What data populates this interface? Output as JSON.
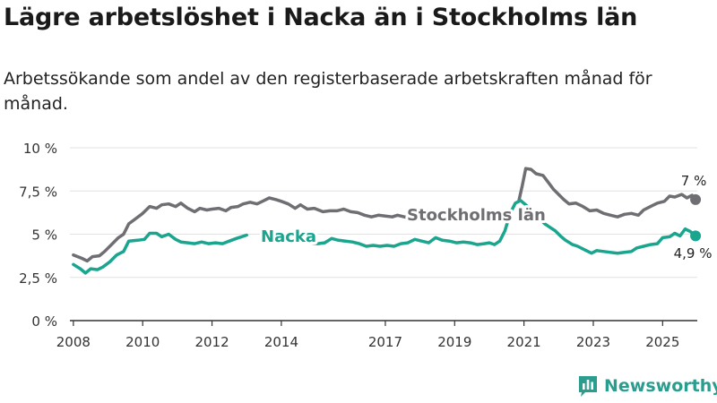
{
  "header": {
    "title": "Lägre arbetslöshet i Nacka än i Stockholms län",
    "subtitle": "Arbetssökande som andel av den registerbaserade arbetskraften månad för månad."
  },
  "brand": {
    "name": "Newsworthy"
  },
  "colors": {
    "stockholm": "#6f6e72",
    "nacka": "#1aa58f",
    "axis": "#333333",
    "grid": "#e2e2e2"
  },
  "chart_data": {
    "type": "line",
    "title": "Lägre arbetslöshet i Nacka än i Stockholms län",
    "ylim": [
      0,
      10
    ],
    "xlim": [
      2007.9,
      2026.0
    ],
    "y_ticks": [
      {
        "value": 0,
        "label": "0 %"
      },
      {
        "value": 2.5,
        "label": "2,5 %"
      },
      {
        "value": 5,
        "label": "5 %"
      },
      {
        "value": 7.5,
        "label": "7,5 %"
      },
      {
        "value": 10,
        "label": "10 %"
      }
    ],
    "x_ticks": [
      {
        "value": 2008,
        "label": "2008"
      },
      {
        "value": 2010,
        "label": "2010"
      },
      {
        "value": 2012,
        "label": "2012"
      },
      {
        "value": 2014,
        "label": "2014"
      },
      {
        "value": 2017,
        "label": "2017"
      },
      {
        "value": 2019,
        "label": "2019"
      },
      {
        "value": 2021,
        "label": "2021"
      },
      {
        "value": 2023,
        "label": "2023"
      },
      {
        "value": 2025,
        "label": "2025"
      }
    ],
    "series": [
      {
        "name": "Stockholms län",
        "label": "Stockholms län",
        "end_label": "7 %",
        "points": [
          [
            2008.0,
            3.8
          ],
          [
            2008.25,
            3.6
          ],
          [
            2008.4,
            3.45
          ],
          [
            2008.55,
            3.7
          ],
          [
            2008.75,
            3.75
          ],
          [
            2008.9,
            4.0
          ],
          [
            2009.1,
            4.4
          ],
          [
            2009.3,
            4.8
          ],
          [
            2009.45,
            5.0
          ],
          [
            2009.6,
            5.6
          ],
          [
            2009.8,
            5.9
          ],
          [
            2010.0,
            6.2
          ],
          [
            2010.2,
            6.6
          ],
          [
            2010.4,
            6.5
          ],
          [
            2010.55,
            6.7
          ],
          [
            2010.75,
            6.75
          ],
          [
            2010.95,
            6.6
          ],
          [
            2011.1,
            6.8
          ],
          [
            2011.3,
            6.5
          ],
          [
            2011.5,
            6.3
          ],
          [
            2011.65,
            6.5
          ],
          [
            2011.85,
            6.4
          ],
          [
            2012.0,
            6.45
          ],
          [
            2012.2,
            6.5
          ],
          [
            2012.4,
            6.35
          ],
          [
            2012.55,
            6.55
          ],
          [
            2012.75,
            6.6
          ],
          [
            2012.9,
            6.75
          ],
          [
            2013.1,
            6.85
          ],
          [
            2013.3,
            6.75
          ],
          [
            2013.5,
            6.95
          ],
          [
            2013.65,
            7.1
          ],
          [
            2013.85,
            7.0
          ],
          [
            2014.0,
            6.9
          ],
          [
            2014.2,
            6.75
          ],
          [
            2014.4,
            6.5
          ],
          [
            2014.55,
            6.7
          ],
          [
            2014.75,
            6.45
          ],
          [
            2014.95,
            6.5
          ],
          [
            2015.2,
            6.3
          ],
          [
            2015.4,
            6.35
          ],
          [
            2015.6,
            6.35
          ],
          [
            2015.8,
            6.45
          ],
          [
            2016.0,
            6.3
          ],
          [
            2016.2,
            6.25
          ],
          [
            2016.4,
            6.1
          ],
          [
            2016.6,
            6.0
          ],
          [
            2016.8,
            6.1
          ],
          [
            2017.0,
            6.05
          ],
          [
            2017.2,
            6.0
          ],
          [
            2017.35,
            6.1
          ],
          [
            2017.55,
            6.0
          ],
          [
            2017.65,
            5.95
          ]
        ],
        "points_right": [
          [
            2020.85,
            6.9
          ],
          [
            2020.95,
            7.8
          ],
          [
            2021.05,
            8.8
          ],
          [
            2021.2,
            8.75
          ],
          [
            2021.35,
            8.5
          ],
          [
            2021.55,
            8.4
          ],
          [
            2021.7,
            8.0
          ],
          [
            2021.85,
            7.6
          ],
          [
            2022.0,
            7.3
          ],
          [
            2022.15,
            7.0
          ],
          [
            2022.3,
            6.75
          ],
          [
            2022.5,
            6.8
          ],
          [
            2022.7,
            6.6
          ],
          [
            2022.9,
            6.35
          ],
          [
            2023.1,
            6.4
          ],
          [
            2023.3,
            6.2
          ],
          [
            2023.5,
            6.1
          ],
          [
            2023.7,
            6.0
          ],
          [
            2023.9,
            6.15
          ],
          [
            2024.1,
            6.2
          ],
          [
            2024.3,
            6.1
          ],
          [
            2024.45,
            6.4
          ],
          [
            2024.65,
            6.6
          ],
          [
            2024.85,
            6.8
          ],
          [
            2025.05,
            6.9
          ],
          [
            2025.2,
            7.2
          ],
          [
            2025.35,
            7.15
          ],
          [
            2025.55,
            7.3
          ],
          [
            2025.7,
            7.1
          ],
          [
            2025.85,
            7.25
          ],
          [
            2025.95,
            7.0
          ]
        ]
      },
      {
        "name": "Nacka",
        "label": "Nacka",
        "end_label": "4,9 %",
        "points": [
          [
            2008.0,
            3.25
          ],
          [
            2008.2,
            3.0
          ],
          [
            2008.35,
            2.75
          ],
          [
            2008.5,
            3.0
          ],
          [
            2008.7,
            2.95
          ],
          [
            2008.85,
            3.1
          ],
          [
            2009.05,
            3.4
          ],
          [
            2009.25,
            3.8
          ],
          [
            2009.45,
            4.0
          ],
          [
            2009.6,
            4.6
          ],
          [
            2009.85,
            4.65
          ],
          [
            2010.05,
            4.7
          ],
          [
            2010.2,
            5.05
          ],
          [
            2010.4,
            5.05
          ],
          [
            2010.55,
            4.85
          ],
          [
            2010.75,
            5.0
          ],
          [
            2010.95,
            4.7
          ],
          [
            2011.1,
            4.55
          ],
          [
            2011.3,
            4.5
          ],
          [
            2011.5,
            4.45
          ],
          [
            2011.7,
            4.55
          ],
          [
            2011.9,
            4.45
          ],
          [
            2012.1,
            4.5
          ],
          [
            2012.3,
            4.45
          ],
          [
            2012.5,
            4.6
          ],
          [
            2012.7,
            4.75
          ],
          [
            2012.85,
            4.85
          ],
          [
            2013.0,
            4.95
          ]
        ],
        "points_mid": [
          [
            2014.85,
            4.5
          ],
          [
            2015.05,
            4.45
          ],
          [
            2015.25,
            4.5
          ],
          [
            2015.45,
            4.75
          ],
          [
            2015.65,
            4.65
          ],
          [
            2015.85,
            4.6
          ],
          [
            2016.05,
            4.55
          ],
          [
            2016.25,
            4.45
          ],
          [
            2016.45,
            4.3
          ],
          [
            2016.65,
            4.35
          ],
          [
            2016.85,
            4.3
          ],
          [
            2017.05,
            4.35
          ],
          [
            2017.25,
            4.3
          ],
          [
            2017.45,
            4.45
          ],
          [
            2017.65,
            4.5
          ],
          [
            2017.85,
            4.7
          ],
          [
            2018.05,
            4.6
          ],
          [
            2018.25,
            4.5
          ],
          [
            2018.45,
            4.8
          ],
          [
            2018.65,
            4.65
          ],
          [
            2018.85,
            4.6
          ],
          [
            2019.05,
            4.5
          ],
          [
            2019.25,
            4.55
          ],
          [
            2019.45,
            4.5
          ],
          [
            2019.65,
            4.4
          ],
          [
            2019.85,
            4.45
          ],
          [
            2020.0,
            4.5
          ],
          [
            2020.15,
            4.4
          ],
          [
            2020.3,
            4.6
          ],
          [
            2020.45,
            5.2
          ],
          [
            2020.6,
            6.2
          ],
          [
            2020.75,
            6.8
          ],
          [
            2020.9,
            6.95
          ],
          [
            2021.05,
            6.7
          ],
          [
            2021.2,
            6.4
          ],
          [
            2021.4,
            6.0
          ],
          [
            2021.6,
            5.6
          ],
          [
            2021.75,
            5.4
          ],
          [
            2021.9,
            5.2
          ],
          [
            2022.05,
            4.9
          ],
          [
            2022.2,
            4.65
          ],
          [
            2022.4,
            4.4
          ],
          [
            2022.55,
            4.3
          ],
          [
            2022.75,
            4.1
          ],
          [
            2022.95,
            3.9
          ],
          [
            2023.1,
            4.05
          ],
          [
            2023.3,
            4.0
          ],
          [
            2023.5,
            3.95
          ],
          [
            2023.7,
            3.9
          ],
          [
            2023.9,
            3.95
          ],
          [
            2024.1,
            4.0
          ],
          [
            2024.25,
            4.2
          ],
          [
            2024.45,
            4.3
          ],
          [
            2024.65,
            4.4
          ],
          [
            2024.85,
            4.45
          ],
          [
            2025.0,
            4.8
          ],
          [
            2025.2,
            4.85
          ],
          [
            2025.35,
            5.05
          ],
          [
            2025.5,
            4.9
          ],
          [
            2025.65,
            5.3
          ],
          [
            2025.8,
            5.15
          ],
          [
            2025.95,
            4.9
          ]
        ]
      }
    ]
  }
}
